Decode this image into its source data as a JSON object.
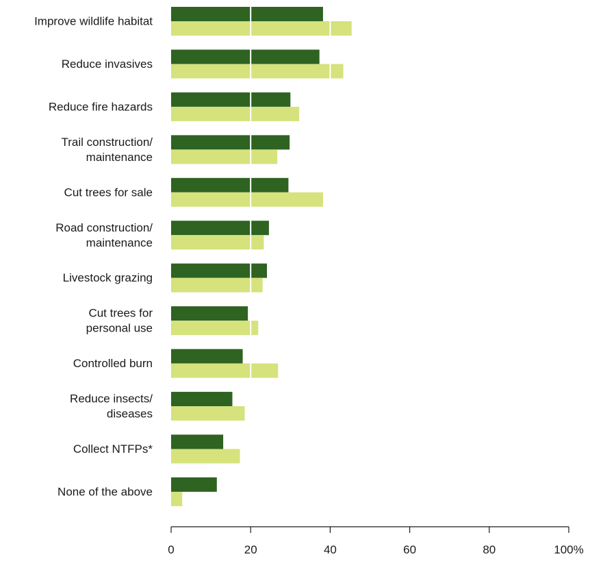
{
  "chart_data": {
    "type": "bar",
    "orientation": "horizontal",
    "categories": [
      [
        "Improve wildlife habitat"
      ],
      [
        "Reduce invasives"
      ],
      [
        "Reduce fire hazards"
      ],
      [
        "Trail construction/",
        "maintenance"
      ],
      [
        "Cut trees for sale"
      ],
      [
        "Road construction/",
        "maintenance"
      ],
      [
        "Livestock grazing"
      ],
      [
        "Cut trees for",
        "personal use"
      ],
      [
        "Controlled burn"
      ],
      [
        "Reduce insects/",
        "diseases"
      ],
      [
        "Collect NTFPs*"
      ],
      [
        "None of the above"
      ]
    ],
    "series": [
      {
        "color": "#2e6321",
        "values": [
          38.2,
          37.3,
          30.0,
          29.8,
          29.5,
          24.6,
          24.1,
          19.3,
          18.0,
          15.4,
          13.1,
          11.5
        ]
      },
      {
        "color": "#d6e27c",
        "values": [
          45.4,
          43.3,
          32.2,
          26.7,
          38.2,
          23.3,
          23.0,
          21.9,
          26.9,
          18.5,
          17.3,
          2.8
        ]
      }
    ],
    "xlim": [
      0,
      100
    ],
    "xticks": [
      0,
      20,
      40,
      60,
      80,
      100
    ],
    "xtick_labels": [
      "0",
      "20",
      "40",
      "60",
      "80",
      "100%"
    ],
    "gridlines": "white lines drawn over bars at each tick",
    "legend": "none",
    "title": "",
    "xlabel": "",
    "ylabel": ""
  }
}
